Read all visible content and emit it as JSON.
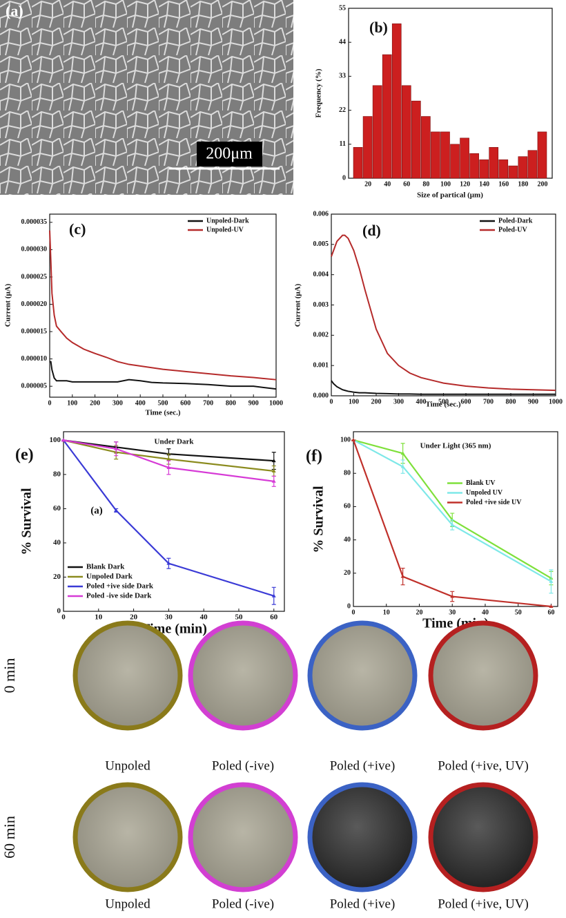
{
  "micrograph": {
    "label": "(a)",
    "scale_bar": "200μm"
  },
  "chart_data": [
    {
      "type": "histogram",
      "label": "(b)",
      "x_label": "Size of partical (μm)",
      "y_label": "Frequency (%)",
      "bins": [
        5,
        15,
        25,
        35,
        45,
        55,
        65,
        75,
        85,
        95,
        105,
        115,
        125,
        135,
        145,
        155,
        165,
        175,
        185,
        195,
        205
      ],
      "values": [
        10,
        20,
        30,
        40,
        50,
        30,
        25,
        20,
        15,
        15,
        11,
        13,
        8,
        6,
        10,
        6,
        4,
        7,
        9,
        15
      ],
      "color": "#cc1f1f",
      "xlim": [
        0,
        210
      ],
      "xticks": [
        20,
        40,
        60,
        80,
        100,
        120,
        140,
        160,
        180,
        200
      ],
      "ylim": [
        0,
        55
      ],
      "yticks": [
        0,
        11,
        22,
        33,
        44,
        55
      ]
    },
    {
      "type": "line",
      "label": "(c)",
      "x_label": "Time (sec.)",
      "y_label": "Current (μA)",
      "legend": "upper right",
      "x": [
        0,
        5,
        10,
        20,
        30,
        50,
        75,
        100,
        150,
        200,
        250,
        300,
        350,
        400,
        450,
        500,
        600,
        700,
        800,
        900,
        1000
      ],
      "series": [
        {
          "name": "Unpoled-Dark",
          "color": "#111111",
          "values": [
            9.5e-06,
            9.5e-06,
            8e-06,
            6.5e-06,
            6e-06,
            6e-06,
            6e-06,
            5.8e-06,
            5.8e-06,
            5.8e-06,
            5.8e-06,
            5.8e-06,
            6.2e-06,
            6e-06,
            5.7e-06,
            5.6e-06,
            5.5e-06,
            5.3e-06,
            5e-06,
            5e-06,
            4.5e-06
          ]
        },
        {
          "name": "Unpoled-UV",
          "color": "#b52a2a",
          "values": [
            3.35e-05,
            2.8e-05,
            2.2e-05,
            1.8e-05,
            1.6e-05,
            1.5e-05,
            1.38e-05,
            1.3e-05,
            1.18e-05,
            1.1e-05,
            1.03e-05,
            9.5e-06,
            9e-06,
            8.7e-06,
            8.4e-06,
            8.1e-06,
            7.7e-06,
            7.3e-06,
            6.9e-06,
            6.6e-06,
            6.2e-06
          ]
        }
      ],
      "xlim": [
        0,
        1000
      ],
      "xticks": [
        0,
        100,
        200,
        300,
        400,
        500,
        600,
        700,
        800,
        900,
        1000
      ],
      "ylim": [
        3e-06,
        3.65e-05
      ],
      "yticks": [
        {
          "value": 5e-06,
          "label": "0.000005"
        },
        {
          "value": 1e-05,
          "label": "0.000010"
        },
        {
          "value": 1.5e-05,
          "label": "0.000015"
        },
        {
          "value": 2e-05,
          "label": "0.000020"
        },
        {
          "value": 2.5e-05,
          "label": "0.000025"
        },
        {
          "value": 3e-05,
          "label": "0.000030"
        },
        {
          "value": 3.5e-05,
          "label": "0.000035"
        }
      ]
    },
    {
      "type": "line",
      "label": "(d)",
      "x_label": "Time (sec.)",
      "y_label": "Current (μA)",
      "legend": "upper right",
      "x": [
        0,
        10,
        25,
        50,
        60,
        75,
        100,
        125,
        150,
        200,
        250,
        300,
        350,
        400,
        500,
        600,
        700,
        800,
        900,
        1000
      ],
      "series": [
        {
          "name": "Poled-Dark",
          "color": "#111111",
          "values": [
            0.0005,
            0.0004,
            0.0003,
            0.0002,
            0.00018,
            0.00015,
            0.00012,
            0.0001,
            0.0001,
            8e-05,
            7e-05,
            6e-05,
            6e-05,
            5e-05,
            5e-05,
            5e-05,
            5e-05,
            5e-05,
            5e-05,
            5e-05
          ]
        },
        {
          "name": "Poled-UV",
          "color": "#b52a2a",
          "values": [
            0.0046,
            0.0048,
            0.0051,
            0.0053,
            0.0053,
            0.0052,
            0.0048,
            0.0042,
            0.0035,
            0.0022,
            0.0014,
            0.001,
            0.00075,
            0.0006,
            0.00042,
            0.00032,
            0.00026,
            0.00022,
            0.0002,
            0.00018
          ]
        }
      ],
      "xlim": [
        0,
        1000
      ],
      "xticks": [
        0,
        100,
        200,
        300,
        400,
        500,
        600,
        700,
        800,
        900,
        1000
      ],
      "ylim": [
        0,
        0.006
      ],
      "yticks": [
        {
          "value": 0,
          "label": "0.000"
        },
        {
          "value": 0.001,
          "label": "0.001"
        },
        {
          "value": 0.002,
          "label": "0.002"
        },
        {
          "value": 0.003,
          "label": "0.003"
        },
        {
          "value": 0.004,
          "label": "0.004"
        },
        {
          "value": 0.005,
          "label": "0.005"
        },
        {
          "value": 0.006,
          "label": "0.006"
        }
      ]
    },
    {
      "type": "errorline",
      "label": "(e)",
      "title": "Under Dark",
      "annotation": "(a)",
      "x_label": "Time (min)",
      "y_label": "% Survival",
      "legend": "lower left",
      "x": [
        0,
        15,
        30,
        60
      ],
      "series": [
        {
          "name": "Blank Dark",
          "color": "#111111",
          "values": [
            100,
            96,
            92,
            88
          ],
          "errors": [
            0,
            3,
            3,
            5
          ]
        },
        {
          "name": "Unpoled Dark",
          "color": "#8b8b1e",
          "values": [
            100,
            93,
            89,
            82
          ],
          "errors": [
            0,
            4,
            3,
            3
          ]
        },
        {
          "name": "Poled  +ive side Dark",
          "color": "#3a3ad6",
          "values": [
            100,
            59,
            28,
            9
          ],
          "errors": [
            0,
            1,
            3,
            5
          ]
        },
        {
          "name": "Poled -ive side Dark",
          "color": "#d63ad6",
          "values": [
            100,
            95,
            84,
            76
          ],
          "errors": [
            0,
            4,
            4,
            3
          ]
        }
      ],
      "xlim": [
        0,
        63
      ],
      "xticks": [
        0,
        10,
        20,
        30,
        40,
        50,
        60
      ],
      "ylim": [
        0,
        105
      ],
      "yticks": [
        0,
        20,
        40,
        60,
        80,
        100
      ]
    },
    {
      "type": "errorline",
      "label": "(f)",
      "title": "Under Light (365 nm)",
      "x_label": "Time (min)",
      "y_label": "% Survival",
      "legend": "center right",
      "x": [
        0,
        15,
        30,
        60
      ],
      "series": [
        {
          "name": "Blank UV",
          "color": "#7ee03a",
          "values": [
            100,
            92,
            52,
            17
          ],
          "errors": [
            0,
            6,
            4,
            4
          ]
        },
        {
          "name": "Unpoled UV",
          "color": "#7ee8e8",
          "values": [
            100,
            84,
            49,
            15
          ],
          "errors": [
            0,
            4,
            3,
            7
          ]
        },
        {
          "name": "Poled +ive side UV",
          "color": "#c0302a",
          "values": [
            100,
            18,
            6,
            0
          ],
          "errors": [
            0,
            5,
            3,
            0
          ]
        }
      ],
      "xlim": [
        0,
        62
      ],
      "xticks": [
        0,
        10,
        20,
        30,
        40,
        50,
        60
      ],
      "ylim": [
        0,
        105
      ],
      "yticks": [
        0,
        20,
        40,
        60,
        80,
        100
      ]
    }
  ],
  "dishes": [
    {
      "time": "0 min",
      "labels": [
        "Unpoled",
        "Poled (-ive)",
        "Poled (+ive)",
        "Poled (+ive, UV)"
      ]
    },
    {
      "time": "60 min",
      "labels": [
        "Unpoled",
        "Poled (-ive)",
        "Poled (+ive)",
        "Poled (+ive, UV)"
      ]
    }
  ]
}
